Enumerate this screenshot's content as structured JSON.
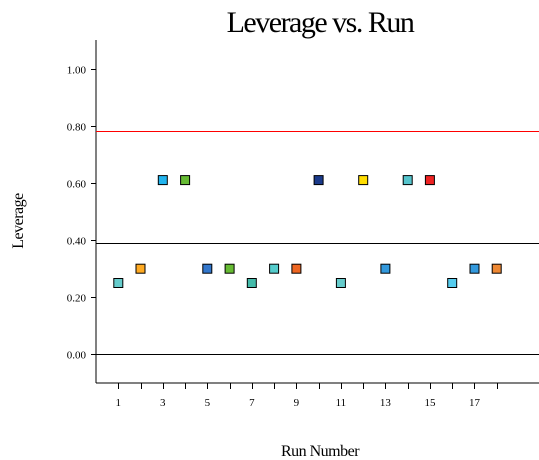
{
  "chart_data": {
    "type": "scatter",
    "title": "Leverage vs. Run",
    "xlabel": "Run Number",
    "ylabel": "Leverage",
    "xlim": [
      0,
      19
    ],
    "ylim": [
      -0.1,
      1.1
    ],
    "x_ticks": [
      "1",
      "3",
      "5",
      "7",
      "9",
      "11",
      "13",
      "15",
      "17"
    ],
    "y_ticks": [
      "0.00",
      "0.20",
      "0.40",
      "0.60",
      "0.80",
      "1.00"
    ],
    "reference_lines": [
      {
        "y": 0.78,
        "color": "#ff0000"
      },
      {
        "y": 0.39,
        "color": "#000000"
      },
      {
        "y": 0.0,
        "color": "#000000"
      }
    ],
    "points": [
      {
        "x": 1,
        "y": 0.25,
        "color": "#66cccc"
      },
      {
        "x": 2,
        "y": 0.3,
        "color": "#ffaa22"
      },
      {
        "x": 3,
        "y": 0.61,
        "color": "#22b4ee"
      },
      {
        "x": 4,
        "y": 0.61,
        "color": "#66bb33"
      },
      {
        "x": 5,
        "y": 0.3,
        "color": "#3377cc"
      },
      {
        "x": 6,
        "y": 0.3,
        "color": "#66bb33"
      },
      {
        "x": 7,
        "y": 0.25,
        "color": "#44bbaa"
      },
      {
        "x": 8,
        "y": 0.3,
        "color": "#55cccc"
      },
      {
        "x": 9,
        "y": 0.3,
        "color": "#ee6622"
      },
      {
        "x": 10,
        "y": 0.61,
        "color": "#1a3a8a"
      },
      {
        "x": 11,
        "y": 0.25,
        "color": "#66cccc"
      },
      {
        "x": 12,
        "y": 0.61,
        "color": "#ffdd00"
      },
      {
        "x": 13,
        "y": 0.3,
        "color": "#3399dd"
      },
      {
        "x": 14,
        "y": 0.61,
        "color": "#55c4cc"
      },
      {
        "x": 15,
        "y": 0.61,
        "color": "#ee2222"
      },
      {
        "x": 16,
        "y": 0.25,
        "color": "#55ccee"
      },
      {
        "x": 17,
        "y": 0.3,
        "color": "#3399dd"
      },
      {
        "x": 18,
        "y": 0.3,
        "color": "#ee8833"
      }
    ]
  }
}
